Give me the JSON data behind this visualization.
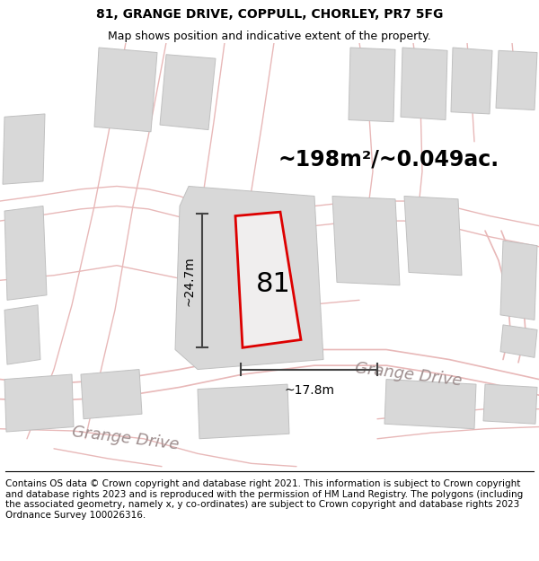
{
  "title": "81, GRANGE DRIVE, COPPULL, CHORLEY, PR7 5FG",
  "subtitle": "Map shows position and indicative extent of the property.",
  "footer": "Contains OS data © Crown copyright and database right 2021. This information is subject to Crown copyright and database rights 2023 and is reproduced with the permission of HM Land Registry. The polygons (including the associated geometry, namely x, y co-ordinates) are subject to Crown copyright and database rights 2023 Ordnance Survey 100026316.",
  "area_label": "~198m²/~0.049ac.",
  "plot_number": "81",
  "dim_height": "~24.7m",
  "dim_width": "~17.8m",
  "road_label_right": "Grange Drive",
  "road_label_bottom": "Grange Drive",
  "map_bg": "#f0eeee",
  "block_color": "#d8d8d8",
  "block_edge": "#c8c8c8",
  "road_color": "#e8b8b8",
  "plot_outline_color": "#dd0000",
  "plot_fill_color": "#f0eeee",
  "dim_line_color": "#444444",
  "title_fontsize": 10,
  "subtitle_fontsize": 9,
  "footer_fontsize": 7.5,
  "area_fontsize": 17,
  "number_fontsize": 22,
  "dim_fontsize": 10,
  "road_fontsize": 13
}
